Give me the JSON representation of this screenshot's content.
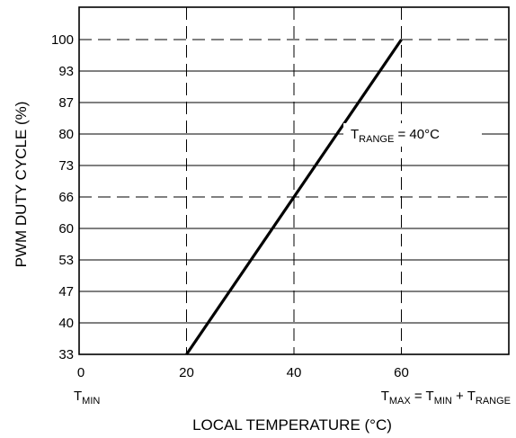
{
  "chart_data": {
    "type": "line",
    "ylabel": "PWM DUTY CYCLE (%)",
    "xlabel": "LOCAL TEMPERATURE (°C)",
    "x_ticks": [
      0,
      20,
      40,
      60
    ],
    "y_ticks": [
      "33",
      "40",
      "47",
      "53",
      "60",
      "66",
      "73",
      "80",
      "87",
      "93",
      "100"
    ],
    "xlim": [
      0,
      80
    ],
    "ylim": [
      33,
      100
    ],
    "series": [
      {
        "x": [
          20,
          60
        ],
        "y": [
          33,
          100
        ]
      }
    ],
    "dashed_y": [
      100,
      66
    ],
    "dashed_x": [
      20,
      40,
      60
    ],
    "annotation": {
      "pre": "T",
      "sub": "RANGE",
      "post": " = 40°C",
      "at_y": 80
    },
    "x_under_labels": {
      "tmin": {
        "pre": "T",
        "sub": "MIN"
      },
      "tmax": {
        "a": "T",
        "a_sub": "MAX",
        "b": " = T",
        "b_sub": "MIN",
        "c": " + T",
        "c_sub": "RANGE"
      }
    }
  }
}
